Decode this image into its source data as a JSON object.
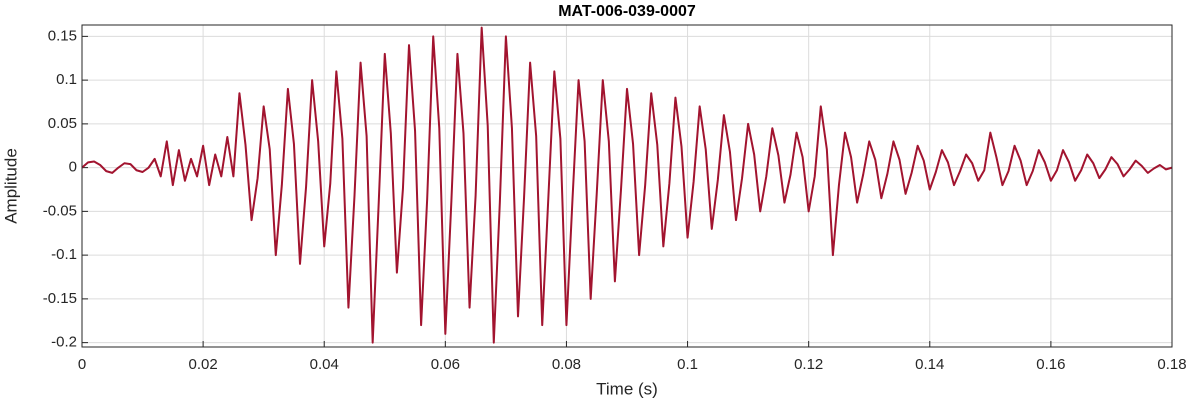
{
  "chart_data": {
    "type": "line",
    "title": "MAT-006-039-0007",
    "x_label": "Time (s)",
    "y_label": "Amplitude",
    "x": [
      0,
      0.001,
      0.002,
      0.003,
      0.004,
      0.005,
      0.006,
      0.007,
      0.008,
      0.009,
      0.01,
      0.011,
      0.012,
      0.013,
      0.014,
      0.015,
      0.016,
      0.017,
      0.018,
      0.019,
      0.02,
      0.021,
      0.022,
      0.023,
      0.024,
      0.025,
      0.026,
      0.027,
      0.028,
      0.029,
      0.03,
      0.031,
      0.032,
      0.033,
      0.034,
      0.035,
      0.036,
      0.037,
      0.038,
      0.039,
      0.04,
      0.041,
      0.042,
      0.043,
      0.044,
      0.045,
      0.046,
      0.047,
      0.048,
      0.049,
      0.05,
      0.051,
      0.052,
      0.053,
      0.054,
      0.055,
      0.056,
      0.057,
      0.058,
      0.059,
      0.06,
      0.061,
      0.062,
      0.063,
      0.064,
      0.065,
      0.066,
      0.067,
      0.068,
      0.069,
      0.07,
      0.071,
      0.072,
      0.073,
      0.074,
      0.075,
      0.076,
      0.077,
      0.078,
      0.079,
      0.08,
      0.081,
      0.082,
      0.083,
      0.084,
      0.085,
      0.086,
      0.087,
      0.088,
      0.089,
      0.09,
      0.091,
      0.092,
      0.093,
      0.094,
      0.095,
      0.096,
      0.097,
      0.098,
      0.099,
      0.1,
      0.101,
      0.102,
      0.103,
      0.104,
      0.105,
      0.106,
      0.107,
      0.108,
      0.109,
      0.11,
      0.111,
      0.112,
      0.113,
      0.114,
      0.115,
      0.116,
      0.117,
      0.118,
      0.119,
      0.12,
      0.121,
      0.122,
      0.123,
      0.124,
      0.125,
      0.126,
      0.127,
      0.128,
      0.129,
      0.13,
      0.131,
      0.132,
      0.133,
      0.134,
      0.135,
      0.136,
      0.137,
      0.138,
      0.139,
      0.14,
      0.141,
      0.142,
      0.143,
      0.144,
      0.145,
      0.146,
      0.147,
      0.148,
      0.149,
      0.15,
      0.151,
      0.152,
      0.153,
      0.154,
      0.155,
      0.156,
      0.157,
      0.158,
      0.159,
      0.16,
      0.161,
      0.162,
      0.163,
      0.164,
      0.165,
      0.166,
      0.167,
      0.168,
      0.169,
      0.17,
      0.171,
      0.172,
      0.173,
      0.174,
      0.175,
      0.176,
      0.177,
      0.178,
      0.179,
      0.18
    ],
    "series": [
      {
        "name": "Amplitude",
        "color": "#a2142f",
        "values": [
          0,
          0.006,
          0.007,
          0.003,
          -0.004,
          -0.006,
          0,
          0.005,
          0.004,
          -0.003,
          -0.005,
          0,
          0.01,
          -0.01,
          0.03,
          -0.02,
          0.02,
          -0.015,
          0.01,
          -0.01,
          0.025,
          -0.02,
          0.015,
          -0.01,
          0.035,
          -0.01,
          0.085,
          0.026,
          -0.06,
          -0.012,
          0.07,
          0.021,
          -0.1,
          -0.02,
          0.09,
          0.027,
          -0.11,
          -0.022,
          0.1,
          0.03,
          -0.09,
          -0.018,
          0.11,
          0.033,
          -0.16,
          -0.032,
          0.12,
          0.036,
          -0.2,
          -0.04,
          0.13,
          0.039,
          -0.12,
          -0.024,
          0.14,
          0.042,
          -0.18,
          -0.036,
          0.15,
          0.045,
          -0.19,
          -0.038,
          0.13,
          0.039,
          -0.16,
          -0.032,
          0.16,
          0.048,
          -0.2,
          -0.04,
          0.15,
          0.045,
          -0.17,
          -0.034,
          0.12,
          0.036,
          -0.18,
          -0.036,
          0.11,
          0.033,
          -0.18,
          -0.036,
          0.1,
          0.03,
          -0.15,
          -0.03,
          0.1,
          0.03,
          -0.13,
          -0.026,
          0.09,
          0.027,
          -0.1,
          -0.02,
          0.085,
          0.026,
          -0.09,
          -0.018,
          0.08,
          0.024,
          -0.08,
          -0.016,
          0.07,
          0.021,
          -0.07,
          -0.014,
          0.06,
          0.018,
          -0.06,
          -0.012,
          0.05,
          0.015,
          -0.05,
          -0.01,
          0.045,
          0.014,
          -0.04,
          -0.008,
          0.04,
          0.012,
          -0.05,
          -0.01,
          0.07,
          0.021,
          -0.1,
          -0.02,
          0.04,
          0.012,
          -0.04,
          -0.008,
          0.03,
          0.009,
          -0.035,
          -0.007,
          0.03,
          0.009,
          -0.03,
          -0.006,
          0.025,
          0.008,
          -0.025,
          -0.005,
          0.02,
          0.006,
          -0.02,
          -0.004,
          0.015,
          0.005,
          -0.015,
          -0.003,
          0.04,
          0.012,
          -0.02,
          -0.004,
          0.025,
          0.008,
          -0.02,
          -0.004,
          0.02,
          0.006,
          -0.015,
          -0.003,
          0.02,
          0.006,
          -0.015,
          -0.003,
          0.015,
          0.005,
          -0.012,
          -0.002,
          0.012,
          0.004,
          -0.01,
          -0.002,
          0.008,
          0.002,
          -0.006,
          -0.001,
          0.003,
          -0.002,
          0
        ]
      }
    ],
    "xlim": [
      0,
      0.18
    ],
    "ylim": [
      -0.205,
      0.163
    ],
    "xticks": [
      0,
      0.02,
      0.04,
      0.06,
      0.08,
      0.1,
      0.12,
      0.14,
      0.16,
      0.18
    ],
    "yticks": [
      -0.2,
      -0.15,
      -0.1,
      -0.05,
      0,
      0.05,
      0.1,
      0.15
    ],
    "grid": true
  }
}
